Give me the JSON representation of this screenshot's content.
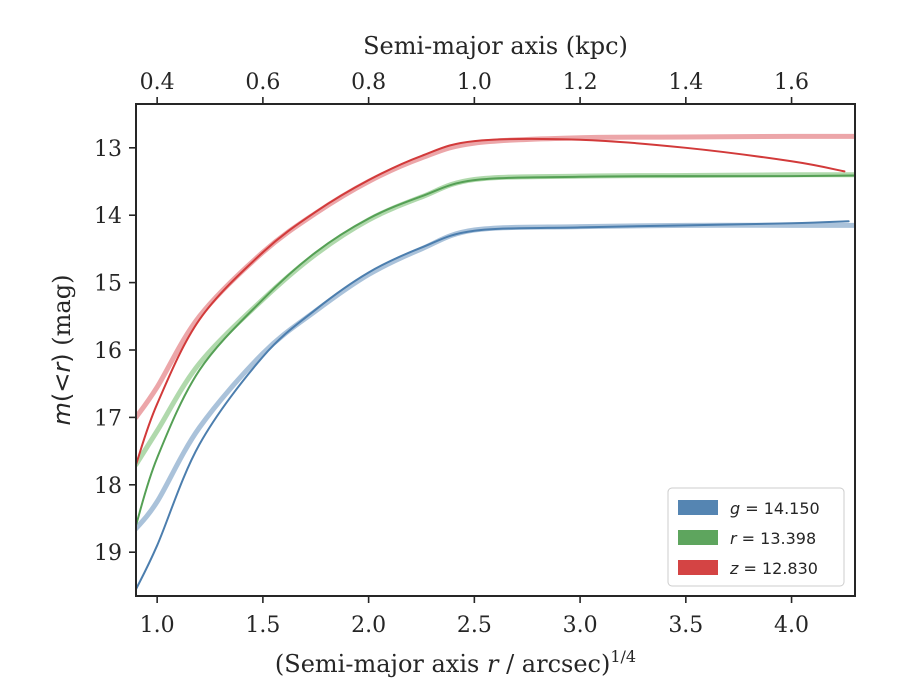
{
  "chart_data": {
    "type": "line",
    "xlabel": "(Semi-major axis r / arcsec)1/4",
    "ylabel": "m(<r) (mag)",
    "top_xlabel": "Semi-major axis (kpc)",
    "xlim": [
      0.9,
      4.3
    ],
    "ylim": [
      19.65,
      12.35
    ],
    "y_inverted": true,
    "xticks": [
      1.0,
      1.5,
      2.0,
      2.5,
      3.0,
      3.5,
      4.0
    ],
    "xtick_labels": [
      "1.0",
      "1.5",
      "2.0",
      "2.5",
      "3.0",
      "3.5",
      "4.0"
    ],
    "yticks": [
      13,
      14,
      15,
      16,
      17,
      18,
      19
    ],
    "ytick_labels": [
      "13",
      "14",
      "15",
      "16",
      "17",
      "18",
      "19"
    ],
    "top_xticks": [
      0.4,
      0.6,
      0.8,
      1.0,
      1.2,
      1.4,
      1.6
    ],
    "top_xtick_labels": [
      "0.4",
      "0.6",
      "0.8",
      "1.0",
      "1.2",
      "1.4",
      "1.6"
    ],
    "top_x_to_bottom_x_factor": 2.5,
    "grid": false,
    "legend_position": "bottom-right",
    "series": [
      {
        "name": "g = 14.150",
        "legend_var": "g",
        "legend_value": "14.150",
        "color": "#4C7EAE",
        "light_color": "#9BB7D4",
        "x": [
          0.9,
          1.0,
          1.2,
          1.5,
          1.75,
          2.0,
          2.25,
          2.5,
          3.0,
          3.5,
          4.0,
          4.27
        ],
        "values": [
          19.55,
          18.9,
          17.4,
          16.1,
          15.4,
          14.85,
          14.48,
          14.23,
          14.18,
          14.15,
          14.12,
          14.09
        ],
        "model_x": [
          0.9,
          1.0,
          1.2,
          1.5,
          1.75,
          2.0,
          2.25,
          2.5,
          3.0,
          3.5,
          4.0,
          4.3
        ],
        "model_values": [
          18.65,
          18.25,
          17.15,
          16.05,
          15.42,
          14.88,
          14.5,
          14.22,
          14.17,
          14.15,
          14.15,
          14.15
        ]
      },
      {
        "name": "r = 13.398",
        "legend_var": "r",
        "legend_value": "13.398",
        "color": "#55A055",
        "light_color": "#A2D29E",
        "x": [
          0.9,
          1.0,
          1.2,
          1.5,
          1.75,
          2.0,
          2.25,
          2.5,
          3.0,
          3.5,
          4.0,
          4.3
        ],
        "values": [
          18.6,
          17.6,
          16.3,
          15.25,
          14.55,
          14.05,
          13.72,
          13.48,
          13.43,
          13.42,
          13.42,
          13.41
        ],
        "model_x": [
          0.9,
          1.0,
          1.2,
          1.5,
          1.75,
          2.0,
          2.25,
          2.5,
          3.0,
          3.5,
          4.0,
          4.3
        ],
        "model_values": [
          17.7,
          17.2,
          16.2,
          15.25,
          14.58,
          14.07,
          13.73,
          13.47,
          13.42,
          13.41,
          13.4,
          13.4
        ]
      },
      {
        "name": "z = 12.830",
        "legend_var": "z",
        "legend_value": "12.830",
        "color": "#D23A3A",
        "light_color": "#E9969A",
        "x": [
          0.9,
          1.0,
          1.2,
          1.5,
          1.75,
          2.0,
          2.25,
          2.5,
          3.0,
          3.5,
          4.0,
          4.25
        ],
        "values": [
          17.7,
          16.8,
          15.55,
          14.55,
          13.95,
          13.48,
          13.12,
          12.9,
          12.88,
          13.0,
          13.2,
          13.35
        ],
        "model_x": [
          0.9,
          1.0,
          1.2,
          1.5,
          1.75,
          2.0,
          2.25,
          2.5,
          3.0,
          3.5,
          4.0,
          4.3
        ],
        "model_values": [
          17.0,
          16.55,
          15.5,
          14.55,
          13.97,
          13.5,
          13.15,
          12.93,
          12.85,
          12.84,
          12.83,
          12.83
        ]
      }
    ]
  }
}
